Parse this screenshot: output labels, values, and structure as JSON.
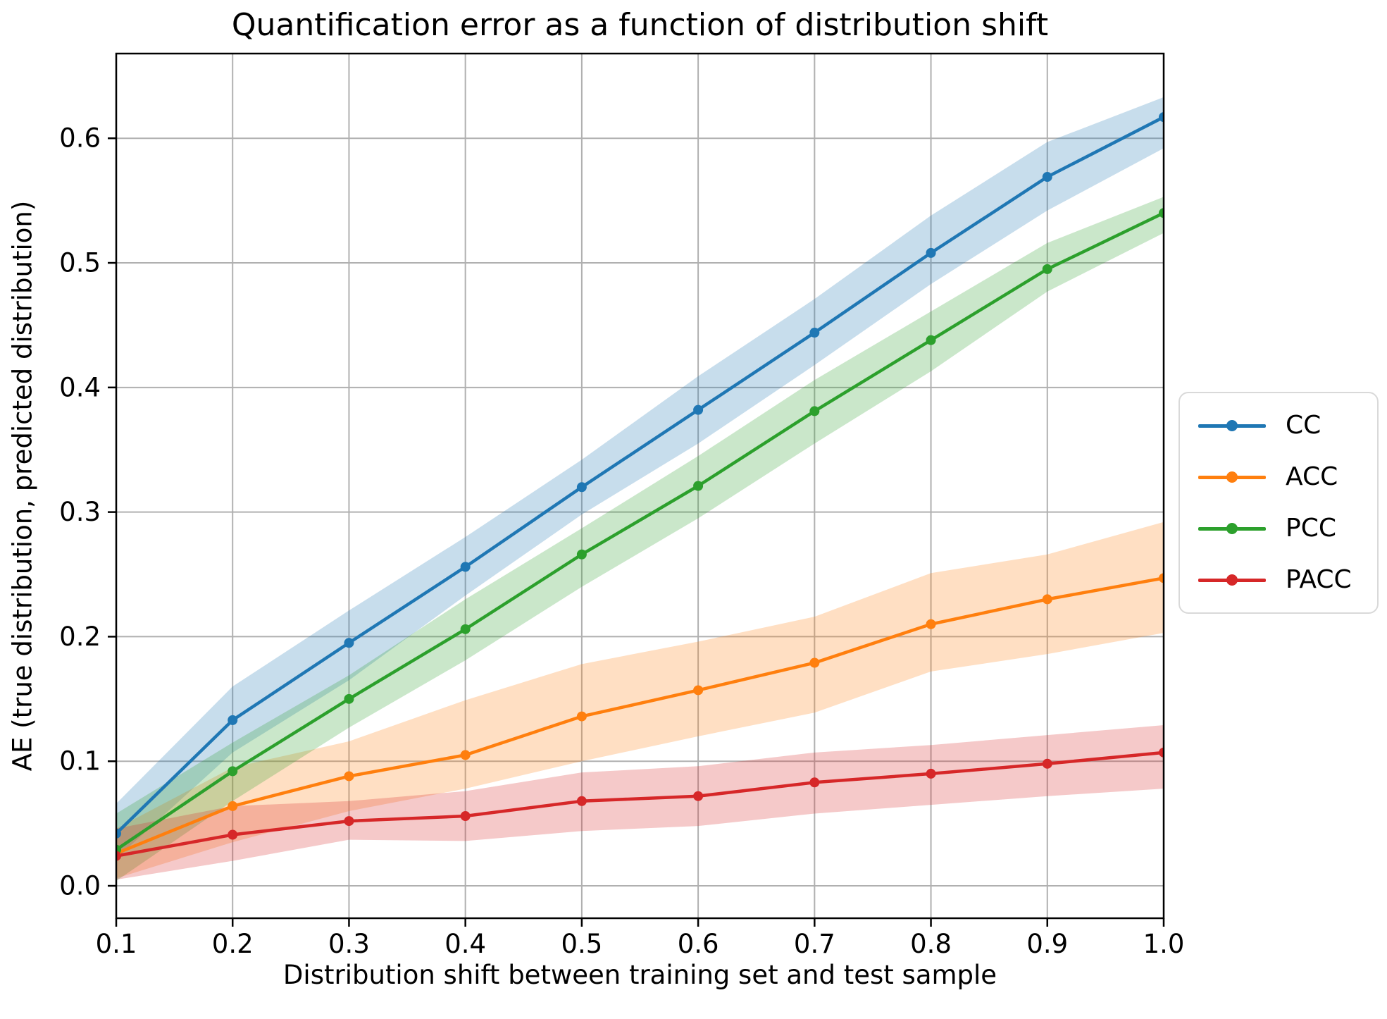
{
  "chart_data": {
    "type": "line",
    "title": "Quantification error as a function of distribution shift",
    "xlabel": "Distribution shift between training set and test sample",
    "ylabel": "AE (true distribution, predicted distribution)",
    "x": [
      0.1,
      0.2,
      0.3,
      0.4,
      0.5,
      0.6,
      0.7,
      0.8,
      0.9,
      1.0
    ],
    "xlim": [
      0.1,
      1.0
    ],
    "ylim": [
      -0.026,
      0.668
    ],
    "xticks": {
      "values": [
        0.1,
        0.2,
        0.3,
        0.4,
        0.5,
        0.6,
        0.7,
        0.8,
        0.9,
        1.0
      ],
      "labels": [
        "0.1",
        "0.2",
        "0.3",
        "0.4",
        "0.5",
        "0.6",
        "0.7",
        "0.8",
        "0.9",
        "1.0"
      ]
    },
    "yticks": {
      "values": [
        0.0,
        0.1,
        0.2,
        0.3,
        0.4,
        0.5,
        0.6
      ],
      "labels": [
        "0.0",
        "0.1",
        "0.2",
        "0.3",
        "0.4",
        "0.5",
        "0.6"
      ]
    },
    "grid": true,
    "grid_color": "#b0b0b0",
    "band_alpha": 0.25,
    "legend_position": "right-outside",
    "series": [
      {
        "name": "CC",
        "color": "#1f77b4",
        "values": [
          0.042,
          0.133,
          0.195,
          0.256,
          0.32,
          0.382,
          0.444,
          0.508,
          0.569,
          0.617
        ],
        "band_upper": [
          0.066,
          0.16,
          0.221,
          0.28,
          0.342,
          0.409,
          0.471,
          0.538,
          0.597,
          0.633
        ],
        "band_lower": [
          0.022,
          0.107,
          0.165,
          0.233,
          0.298,
          0.355,
          0.418,
          0.483,
          0.542,
          0.592
        ]
      },
      {
        "name": "ACC",
        "color": "#ff7f0e",
        "values": [
          0.026,
          0.064,
          0.088,
          0.105,
          0.136,
          0.157,
          0.179,
          0.21,
          0.23,
          0.247
        ],
        "band_upper": [
          0.046,
          0.095,
          0.116,
          0.149,
          0.178,
          0.196,
          0.216,
          0.251,
          0.266,
          0.292
        ],
        "band_lower": [
          0.006,
          0.035,
          0.06,
          0.078,
          0.1,
          0.12,
          0.139,
          0.172,
          0.186,
          0.203
        ]
      },
      {
        "name": "PCC",
        "color": "#2ca02c",
        "values": [
          0.029,
          0.092,
          0.15,
          0.206,
          0.266,
          0.321,
          0.381,
          0.438,
          0.495,
          0.54
        ],
        "band_upper": [
          0.058,
          0.115,
          0.169,
          0.23,
          0.287,
          0.345,
          0.406,
          0.461,
          0.516,
          0.553
        ],
        "band_lower": [
          0.004,
          0.068,
          0.127,
          0.181,
          0.24,
          0.295,
          0.355,
          0.413,
          0.477,
          0.524
        ]
      },
      {
        "name": "PACC",
        "color": "#d62728",
        "values": [
          0.024,
          0.041,
          0.052,
          0.056,
          0.068,
          0.072,
          0.083,
          0.09,
          0.098,
          0.107
        ],
        "band_upper": [
          0.046,
          0.064,
          0.068,
          0.076,
          0.091,
          0.096,
          0.107,
          0.113,
          0.121,
          0.129
        ],
        "band_lower": [
          0.005,
          0.02,
          0.037,
          0.036,
          0.044,
          0.048,
          0.058,
          0.065,
          0.072,
          0.078
        ]
      }
    ]
  }
}
